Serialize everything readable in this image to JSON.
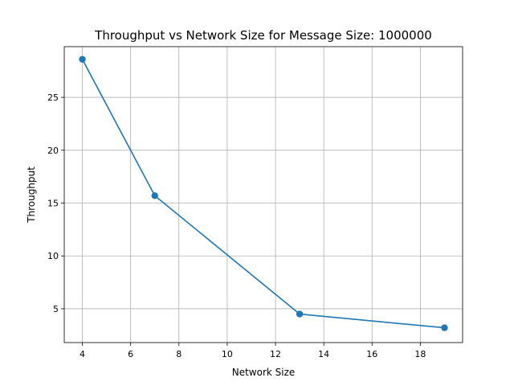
{
  "chart_data": {
    "type": "line",
    "title": "Throughput vs Network Size for Message Size: 1000000",
    "xlabel": "Network Size",
    "ylabel": "Throughput",
    "xlim": [
      3.25,
      19.75
    ],
    "ylim": [
      1.8,
      29.8
    ],
    "xticks": [
      4,
      6,
      8,
      10,
      12,
      14,
      16,
      18
    ],
    "yticks": [
      5,
      10,
      15,
      20,
      25
    ],
    "grid": true,
    "legend": "none",
    "series": [
      {
        "x": [
          4,
          7,
          13,
          19
        ],
        "y": [
          28.6,
          15.7,
          4.5,
          3.2
        ],
        "color": "#1f77b4",
        "marker": "circle"
      }
    ]
  }
}
